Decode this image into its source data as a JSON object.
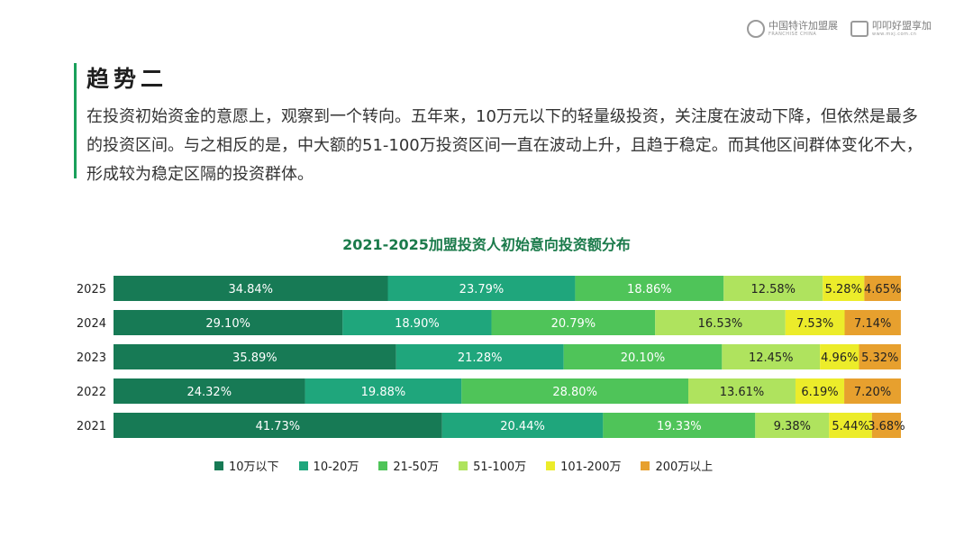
{
  "header": {
    "logo_left": {
      "name": "中国特许加盟展",
      "sub": "FRANCHISE CHINA"
    },
    "logo_right": {
      "name": "叩叩好盟享加",
      "sub": "www.mxj.com.cn"
    }
  },
  "section": {
    "heading": "趋势二",
    "body": "在投资初始资金的意愿上，观察到一个转向。五年来，10万元以下的轻量级投资，关注度在波动下降，但依然是最多的投资区间。与之相反的是，中大额的51-100万投资区间一直在波动上升，且趋于稳定。而其他区间群体变化不大，形成较为稳定区隔的投资群体。"
  },
  "chart_data": {
    "type": "bar",
    "orientation": "horizontal",
    "stacked": true,
    "title": "2021-2025加盟投资人初始意向投资额分布",
    "categories": [
      "2025",
      "2024",
      "2023",
      "2022",
      "2021"
    ],
    "series": [
      {
        "name": "10万以下",
        "color": "#177a55",
        "values": [
          34.84,
          29.1,
          35.89,
          24.32,
          41.73
        ]
      },
      {
        "name": "10-20万",
        "color": "#1fa67c",
        "values": [
          23.79,
          18.9,
          21.28,
          19.88,
          20.44
        ]
      },
      {
        "name": "21-50万",
        "color": "#4fc459",
        "values": [
          18.86,
          20.79,
          20.1,
          28.8,
          19.33
        ]
      },
      {
        "name": "51-100万",
        "color": "#afe35e",
        "values": [
          12.58,
          16.53,
          12.45,
          13.61,
          9.38
        ]
      },
      {
        "name": "101-200万",
        "color": "#ecec2a",
        "values": [
          5.28,
          7.53,
          4.96,
          6.19,
          5.44
        ]
      },
      {
        "name": "200万以上",
        "color": "#e7a02e",
        "values": [
          4.65,
          7.14,
          5.32,
          7.2,
          3.68
        ]
      }
    ],
    "value_format": "percent_2dp",
    "xlim": [
      0,
      100
    ],
    "grid": false,
    "legend": "bottom"
  }
}
